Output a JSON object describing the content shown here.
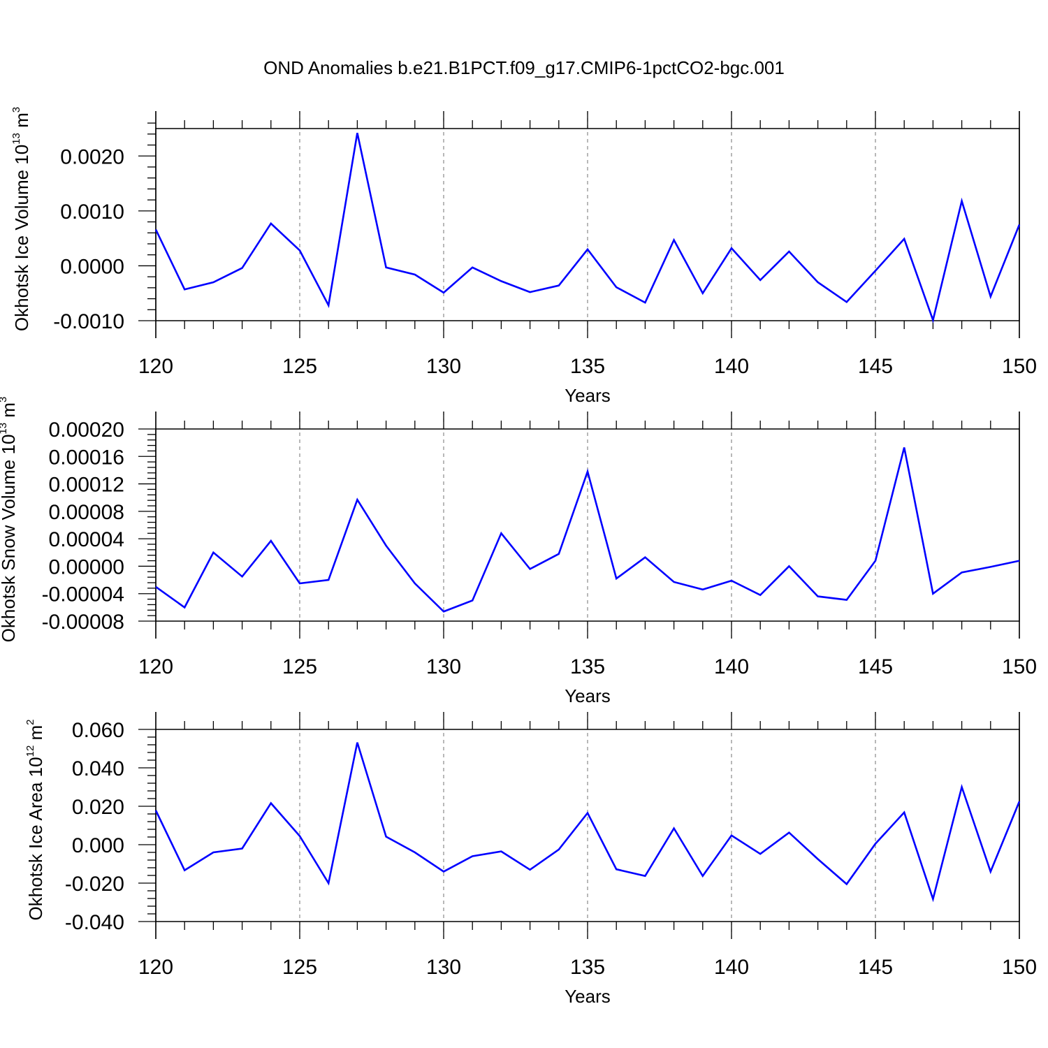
{
  "title": "OND Anomalies b.e21.B1PCT.f09_g17.CMIP6-1pctCO2-bgc.001",
  "chart_data": [
    {
      "type": "line",
      "xlabel": "Years",
      "ylabel": "Okhotsk Ice Volume 10",
      "ylabel_exp": "13",
      "ylabel_unit": " m",
      "ylabel_unit_exp": "3",
      "xlim": [
        120,
        150
      ],
      "ylim": [
        -0.001,
        0.0025
      ],
      "xticks": [
        120,
        125,
        130,
        135,
        140,
        145,
        150
      ],
      "yticks": [
        -0.001,
        0.0,
        0.001,
        0.002
      ],
      "ytick_labels": [
        "-0.0010",
        "0.0000",
        "0.0010",
        "0.0020"
      ],
      "grid_x": "dashed at major x ticks",
      "color": "#0000ff",
      "x": [
        120,
        121,
        122,
        123,
        124,
        125,
        126,
        127,
        128,
        129,
        130,
        131,
        132,
        133,
        134,
        135,
        136,
        137,
        138,
        139,
        140,
        141,
        142,
        143,
        144,
        145,
        146,
        147,
        148,
        149,
        150
      ],
      "y": [
        0.00066,
        -0.00043,
        -0.0003,
        -4e-05,
        0.00077,
        0.00028,
        -0.00072,
        0.00242,
        -3e-05,
        -0.00016,
        -0.00049,
        -3e-05,
        -0.00028,
        -0.00048,
        -0.00036,
        0.0003,
        -0.00039,
        -0.00067,
        0.00047,
        -0.0005,
        0.00032,
        -0.00026,
        0.00026,
        -0.0003,
        -0.00066,
        -9e-05,
        0.00049,
        -0.00099,
        0.00118,
        -0.00056,
        0.00075
      ]
    },
    {
      "type": "line",
      "xlabel": "Years",
      "ylabel": "Okhotsk Snow Volume 10",
      "ylabel_exp": "13",
      "ylabel_unit": " m",
      "ylabel_unit_exp": "3",
      "xlim": [
        120,
        150
      ],
      "ylim": [
        -8e-05,
        0.0002
      ],
      "xticks": [
        120,
        125,
        130,
        135,
        140,
        145,
        150
      ],
      "yticks": [
        -8e-05,
        -4e-05,
        0.0,
        4e-05,
        8e-05,
        0.00012,
        0.00016,
        0.0002
      ],
      "ytick_labels": [
        "-0.00008",
        "-0.00004",
        "0.00000",
        "0.00004",
        "0.00008",
        "0.00012",
        "0.00016",
        "0.00020"
      ],
      "grid_x": "dashed at major x ticks",
      "color": "#0000ff",
      "x": [
        120,
        121,
        122,
        123,
        124,
        125,
        126,
        127,
        128,
        129,
        130,
        131,
        132,
        133,
        134,
        135,
        136,
        137,
        138,
        139,
        140,
        141,
        142,
        143,
        144,
        145,
        146,
        147,
        148,
        149,
        150
      ],
      "y": [
        -3e-05,
        -6e-05,
        2e-05,
        -1.5e-05,
        3.7e-05,
        -2.5e-05,
        -2e-05,
        9.7e-05,
        3e-05,
        -2.5e-05,
        -6.6e-05,
        -5e-05,
        4.8e-05,
        -4e-06,
        1.8e-05,
        0.000138,
        -1.8e-05,
        1.3e-05,
        -2.3e-05,
        -3.4e-05,
        -2.1e-05,
        -4.2e-05,
        0.0,
        -4.4e-05,
        -4.9e-05,
        8e-06,
        0.000173,
        -4e-05,
        -9e-06,
        -1e-06,
        8e-06
      ]
    },
    {
      "type": "line",
      "xlabel": "Years",
      "ylabel": "Okhotsk Ice Area 10",
      "ylabel_exp": "12",
      "ylabel_unit": " m",
      "ylabel_unit_exp": "2",
      "xlim": [
        120,
        150
      ],
      "ylim": [
        -0.04,
        0.06
      ],
      "xticks": [
        120,
        125,
        130,
        135,
        140,
        145,
        150
      ],
      "yticks": [
        -0.04,
        -0.02,
        0.0,
        0.02,
        0.04,
        0.06
      ],
      "ytick_labels": [
        "-0.040",
        "-0.020",
        "0.000",
        "0.020",
        "0.040",
        "0.060"
      ],
      "grid_x": "dashed at major x ticks",
      "color": "#0000ff",
      "x": [
        120,
        121,
        122,
        123,
        124,
        125,
        126,
        127,
        128,
        129,
        130,
        131,
        132,
        133,
        134,
        135,
        136,
        137,
        138,
        139,
        140,
        141,
        142,
        143,
        144,
        145,
        146,
        147,
        148,
        149,
        150
      ],
      "y": [
        0.0178,
        -0.0133,
        -0.004,
        -0.002,
        0.0216,
        0.0045,
        -0.02,
        0.0532,
        0.0042,
        -0.004,
        -0.014,
        -0.006,
        -0.0035,
        -0.013,
        -0.0025,
        0.0165,
        -0.0128,
        -0.0163,
        0.0085,
        -0.0163,
        0.0048,
        -0.0048,
        0.0063,
        -0.0075,
        -0.0205,
        0.0005,
        0.0168,
        -0.0283,
        0.03,
        -0.014,
        0.0225
      ]
    }
  ]
}
